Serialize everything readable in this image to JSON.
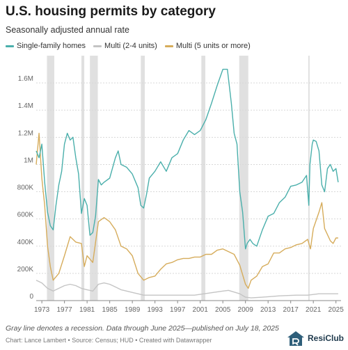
{
  "header": {
    "title": "U.S. housing permits by category",
    "subtitle": "Seasonally adjusted annual rate"
  },
  "footer": {
    "note": "Gray line denotes a recession. Data through June 2025—published on July 18, 2025",
    "source": "Chart: Lance Lambert • Source: Census; HUD • Created with Datawrapper",
    "brand": "ResiClub"
  },
  "colors": {
    "single": "#4aafab",
    "multi24": "#c4c4c4",
    "multi5": "#d6ac5b",
    "recession": "#e0e0e0",
    "grid": "#d8d8d8"
  },
  "chart_data": {
    "type": "line",
    "title": "U.S. housing permits by category",
    "subtitle": "Seasonally adjusted annual rate",
    "xlim": [
      1972.0,
      2025.9
    ],
    "ylim": [
      0,
      1800000
    ],
    "y_ticks": [
      0,
      200000,
      400000,
      600000,
      800000,
      1000000,
      1200000,
      1400000,
      1600000
    ],
    "y_tick_labels": [
      "0",
      "200K",
      "400K",
      "600K",
      "800K",
      "1M",
      "1.2M",
      "1.4M",
      "1.6M"
    ],
    "x_ticks": [
      1973,
      1977,
      1981,
      1985,
      1989,
      1993,
      1997,
      2001,
      2005,
      2009,
      2013,
      2017,
      2021,
      2025
    ],
    "x_tick_labels": [
      "1973",
      "1977",
      "1981",
      "1985",
      "1989",
      "1993",
      "1997",
      "2001",
      "2005",
      "2009",
      "2013",
      "2017",
      "2021",
      "2025"
    ],
    "grid": "horizontal",
    "legend_position": "top-left",
    "recessions": [
      [
        1973.9,
        1975.2
      ],
      [
        1980.0,
        1980.5
      ],
      [
        1981.5,
        1982.9
      ],
      [
        1990.5,
        1991.2
      ],
      [
        2001.2,
        2001.9
      ],
      [
        2007.9,
        2009.5
      ],
      [
        2020.1,
        2020.3
      ]
    ],
    "series": [
      {
        "name": "Single-family homes",
        "x": [
          1972.0,
          1972.5,
          1973.0,
          1973.5,
          1974.0,
          1974.5,
          1975.0,
          1975.5,
          1976.0,
          1976.5,
          1977.0,
          1977.5,
          1978.0,
          1978.5,
          1979.0,
          1979.5,
          1980.0,
          1980.5,
          1981.0,
          1981.5,
          1982.0,
          1982.5,
          1983.0,
          1983.5,
          1984.0,
          1985.0,
          1986.0,
          1986.5,
          1987.0,
          1988.0,
          1989.0,
          1990.0,
          1990.5,
          1991.0,
          1991.5,
          1992.0,
          1993.0,
          1994.0,
          1995.0,
          1996.0,
          1997.0,
          1998.0,
          1999.0,
          2000.0,
          2001.0,
          2002.0,
          2003.0,
          2004.0,
          2005.0,
          2005.8,
          2006.5,
          2007.0,
          2007.5,
          2008.0,
          2008.5,
          2009.0,
          2009.3,
          2009.8,
          2010.3,
          2011.0,
          2012.0,
          2013.0,
          2014.0,
          2015.0,
          2016.0,
          2017.0,
          2018.0,
          2019.0,
          2019.8,
          2020.2,
          2020.4,
          2020.8,
          2021.0,
          2021.5,
          2022.0,
          2022.5,
          2023.0,
          2023.5,
          2024.0,
          2024.5,
          2025.0,
          2025.4
        ],
        "values": [
          1100000,
          1050000,
          1150000,
          870000,
          650000,
          550000,
          520000,
          700000,
          850000,
          950000,
          1150000,
          1230000,
          1180000,
          1200000,
          1050000,
          930000,
          640000,
          750000,
          700000,
          480000,
          500000,
          620000,
          890000,
          850000,
          870000,
          900000,
          1050000,
          1100000,
          1000000,
          980000,
          930000,
          830000,
          700000,
          680000,
          780000,
          900000,
          950000,
          1020000,
          950000,
          1050000,
          1080000,
          1180000,
          1250000,
          1220000,
          1250000,
          1330000,
          1450000,
          1580000,
          1700000,
          1700000,
          1450000,
          1230000,
          1150000,
          800000,
          650000,
          380000,
          420000,
          450000,
          420000,
          400000,
          520000,
          620000,
          640000,
          720000,
          760000,
          840000,
          850000,
          870000,
          920000,
          700000,
          1000000,
          1150000,
          1180000,
          1170000,
          1100000,
          850000,
          800000,
          970000,
          1000000,
          950000,
          970000,
          870000
        ]
      },
      {
        "name": "Multi (2-4 units)",
        "x": [
          1972.0,
          1973.0,
          1974.0,
          1975.0,
          1976.0,
          1977.0,
          1978.0,
          1979.0,
          1980.0,
          1981.0,
          1982.0,
          1983.0,
          1984.0,
          1985.0,
          1986.0,
          1987.0,
          1988.0,
          1989.0,
          1990.0,
          1991.0,
          1992.0,
          1995.0,
          2000.0,
          2005.0,
          2006.0,
          2008.0,
          2009.0,
          2010.0,
          2012.0,
          2015.0,
          2018.0,
          2020.0,
          2022.0,
          2025.4
        ],
        "values": [
          150000,
          130000,
          90000,
          70000,
          90000,
          110000,
          120000,
          110000,
          90000,
          80000,
          70000,
          120000,
          130000,
          120000,
          100000,
          80000,
          70000,
          60000,
          50000,
          40000,
          40000,
          40000,
          40000,
          70000,
          75000,
          50000,
          25000,
          20000,
          25000,
          35000,
          40000,
          40000,
          50000,
          50000
        ]
      },
      {
        "name": "Multi (5 units or more)",
        "x": [
          1972.0,
          1972.5,
          1973.0,
          1973.5,
          1974.0,
          1974.5,
          1975.0,
          1976.0,
          1977.0,
          1978.0,
          1979.0,
          1980.0,
          1980.5,
          1981.0,
          1982.0,
          1983.0,
          1984.0,
          1985.0,
          1986.0,
          1987.0,
          1988.0,
          1989.0,
          1990.0,
          1991.0,
          1992.0,
          1993.0,
          1994.0,
          1995.0,
          1996.0,
          1997.0,
          1998.0,
          1999.0,
          2000.0,
          2001.0,
          2002.0,
          2003.0,
          2004.0,
          2005.0,
          2006.0,
          2007.0,
          2008.0,
          2009.0,
          2009.5,
          2010.0,
          2011.0,
          2012.0,
          2013.0,
          2014.0,
          2015.0,
          2016.0,
          2017.0,
          2018.0,
          2019.0,
          2020.0,
          2020.5,
          2021.0,
          2022.0,
          2022.5,
          2023.0,
          2024.0,
          2024.5,
          2025.0,
          2025.4
        ],
        "values": [
          1000000,
          1230000,
          900000,
          700000,
          400000,
          250000,
          150000,
          200000,
          330000,
          470000,
          430000,
          420000,
          250000,
          330000,
          280000,
          580000,
          610000,
          580000,
          520000,
          400000,
          380000,
          330000,
          200000,
          150000,
          170000,
          180000,
          230000,
          270000,
          280000,
          300000,
          310000,
          310000,
          320000,
          320000,
          340000,
          340000,
          370000,
          380000,
          360000,
          340000,
          260000,
          120000,
          90000,
          150000,
          180000,
          250000,
          270000,
          350000,
          350000,
          380000,
          390000,
          410000,
          420000,
          450000,
          380000,
          530000,
          650000,
          720000,
          530000,
          440000,
          420000,
          460000,
          460000
        ]
      }
    ]
  }
}
